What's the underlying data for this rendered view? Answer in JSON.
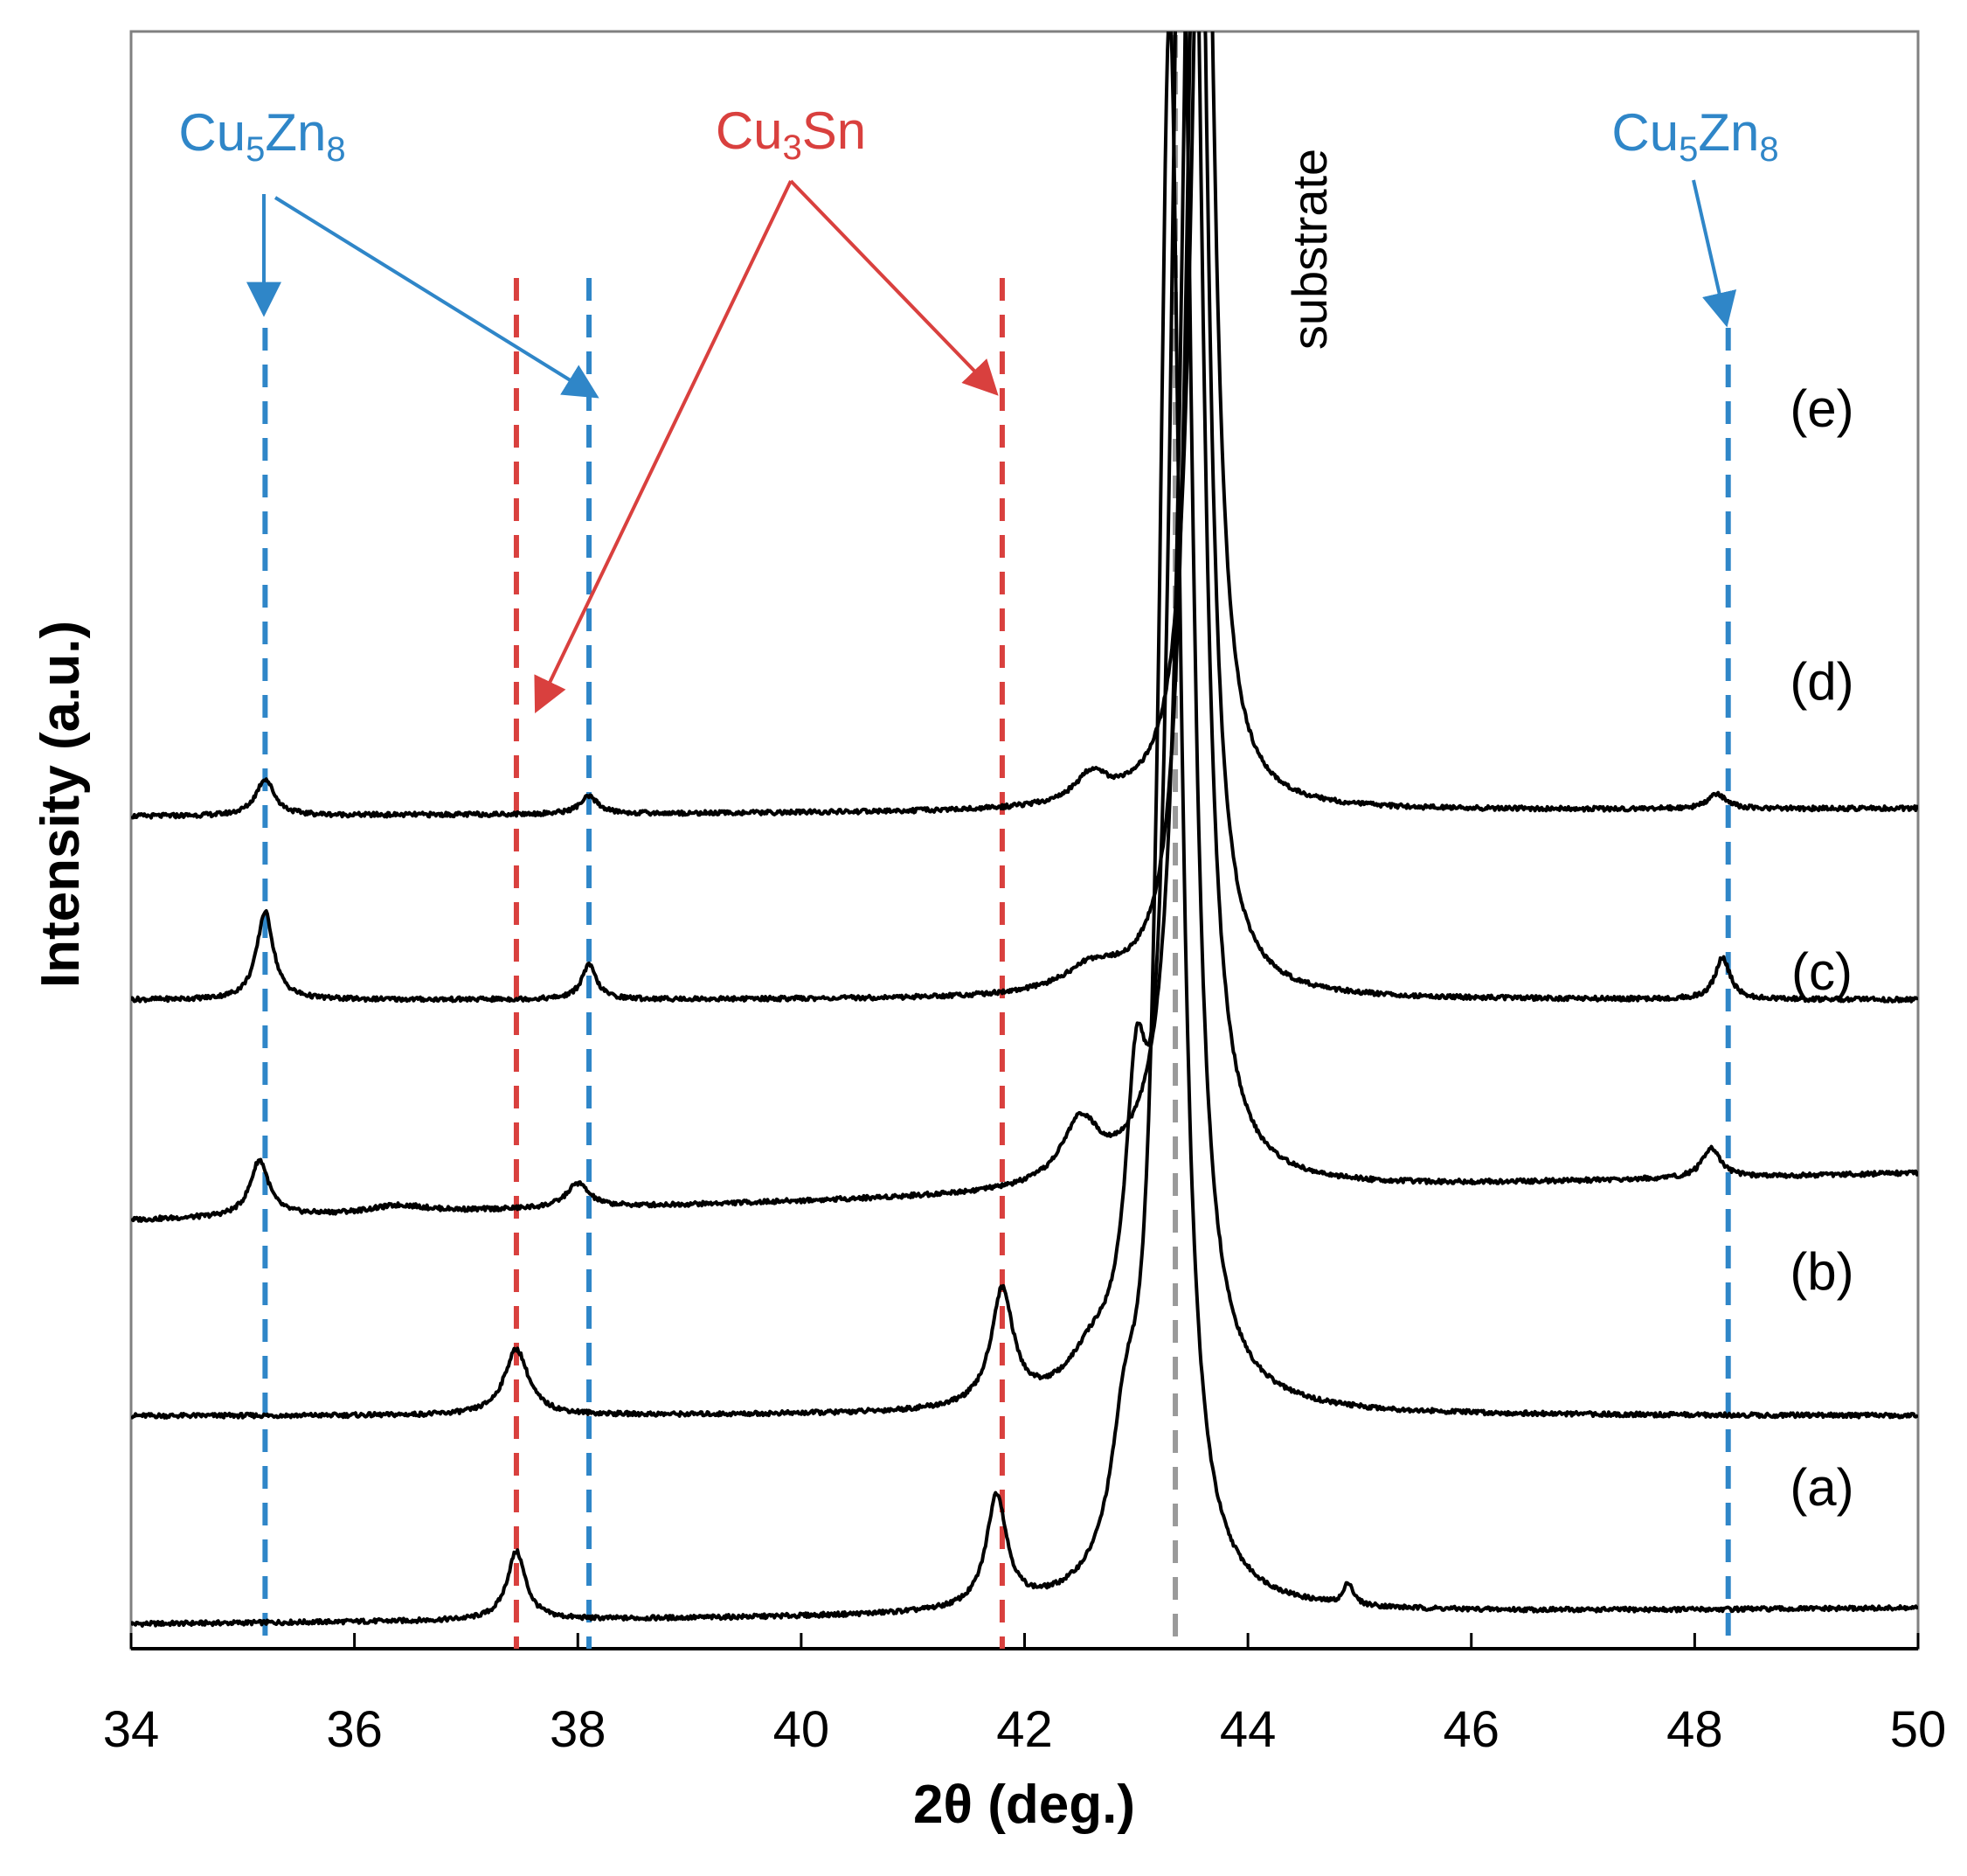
{
  "chart_data": {
    "type": "line",
    "title": "",
    "xlabel": "2θ (deg.)",
    "ylabel": "Intensity (a.u.)",
    "xlim": [
      34,
      50
    ],
    "xticks": [
      34,
      36,
      38,
      40,
      42,
      44,
      46,
      48,
      50
    ],
    "yticks": [],
    "grid": false,
    "series": [
      {
        "name": "(a)",
        "baseline": 0.0,
        "slope": 0.004,
        "peaks": [
          {
            "x": 37.45,
            "height": 0.28,
            "width": 0.1
          },
          {
            "x": 41.75,
            "height": 0.46,
            "width": 0.11
          },
          {
            "x": 42.9,
            "height": 0.5,
            "width": 0.15
          },
          {
            "x": 43.3,
            "height": 6.5,
            "width": 0.12
          },
          {
            "x": 44.9,
            "height": 0.09,
            "width": 0.05
          }
        ]
      },
      {
        "name": "(b)",
        "baseline": 0.85,
        "slope": 0.0,
        "peaks": [
          {
            "x": 37.45,
            "height": 0.27,
            "width": 0.13
          },
          {
            "x": 41.8,
            "height": 0.47,
            "width": 0.12
          },
          {
            "x": 42.6,
            "height": 0.14,
            "width": 0.25
          },
          {
            "x": 43.0,
            "height": 1.0,
            "width": 0.12
          },
          {
            "x": 43.4,
            "height": 6.5,
            "width": 0.12
          }
        ]
      },
      {
        "name": "(c)",
        "baseline": 1.65,
        "slope": 0.012,
        "peaks": [
          {
            "x": 35.15,
            "height": 0.23,
            "width": 0.1
          },
          {
            "x": 36.4,
            "height": 0.03,
            "width": 0.3
          },
          {
            "x": 38.0,
            "height": 0.1,
            "width": 0.12
          },
          {
            "x": 42.5,
            "height": 0.25,
            "width": 0.2
          },
          {
            "x": 43.5,
            "height": 6.0,
            "width": 0.12
          },
          {
            "x": 48.15,
            "height": 0.12,
            "width": 0.1
          }
        ]
      },
      {
        "name": "(d)",
        "baseline": 2.55,
        "slope": 0.0,
        "peaks": [
          {
            "x": 35.2,
            "height": 0.36,
            "width": 0.09
          },
          {
            "x": 38.1,
            "height": 0.14,
            "width": 0.08
          },
          {
            "x": 42.6,
            "height": 0.1,
            "width": 0.3
          },
          {
            "x": 43.55,
            "height": 5.5,
            "width": 0.11
          },
          {
            "x": 48.25,
            "height": 0.17,
            "width": 0.08
          }
        ]
      },
      {
        "name": "(e)",
        "baseline": 3.3,
        "slope": 0.002,
        "peaks": [
          {
            "x": 35.2,
            "height": 0.15,
            "width": 0.1
          },
          {
            "x": 38.1,
            "height": 0.07,
            "width": 0.1
          },
          {
            "x": 42.6,
            "height": 0.12,
            "width": 0.18
          },
          {
            "x": 43.6,
            "height": 5.0,
            "width": 0.11
          },
          {
            "x": 48.2,
            "height": 0.06,
            "width": 0.1
          }
        ]
      }
    ],
    "reference_lines": [
      {
        "x": 35.2,
        "phase": "Cu5Zn8",
        "color": "#2f86c8"
      },
      {
        "x": 38.1,
        "phase": "Cu5Zn8",
        "color": "#2f86c8"
      },
      {
        "x": 48.3,
        "phase": "Cu5Zn8",
        "color": "#2f86c8"
      },
      {
        "x": 37.45,
        "phase": "Cu3Sn",
        "color": "#d9403e"
      },
      {
        "x": 41.8,
        "phase": "Cu3Sn",
        "color": "#d9403e"
      },
      {
        "x": 43.35,
        "phase": "substrate",
        "color": "#9a9a9a"
      }
    ],
    "annotations": {
      "cu5zn8_left": {
        "base": "Cu",
        "sub1": "5",
        "mid": "Zn",
        "sub2": "8"
      },
      "cu3sn": {
        "base": "Cu",
        "sub1": "3",
        "mid": "Sn"
      },
      "cu5zn8_right": {
        "base": "Cu",
        "sub1": "5",
        "mid": "Zn",
        "sub2": "8"
      },
      "substrate": "substrate"
    },
    "colors": {
      "cu5zn8": "#2f86c8",
      "cu3sn": "#d9403e",
      "substrate": "#9a9a9a",
      "curve": "#000000"
    }
  }
}
